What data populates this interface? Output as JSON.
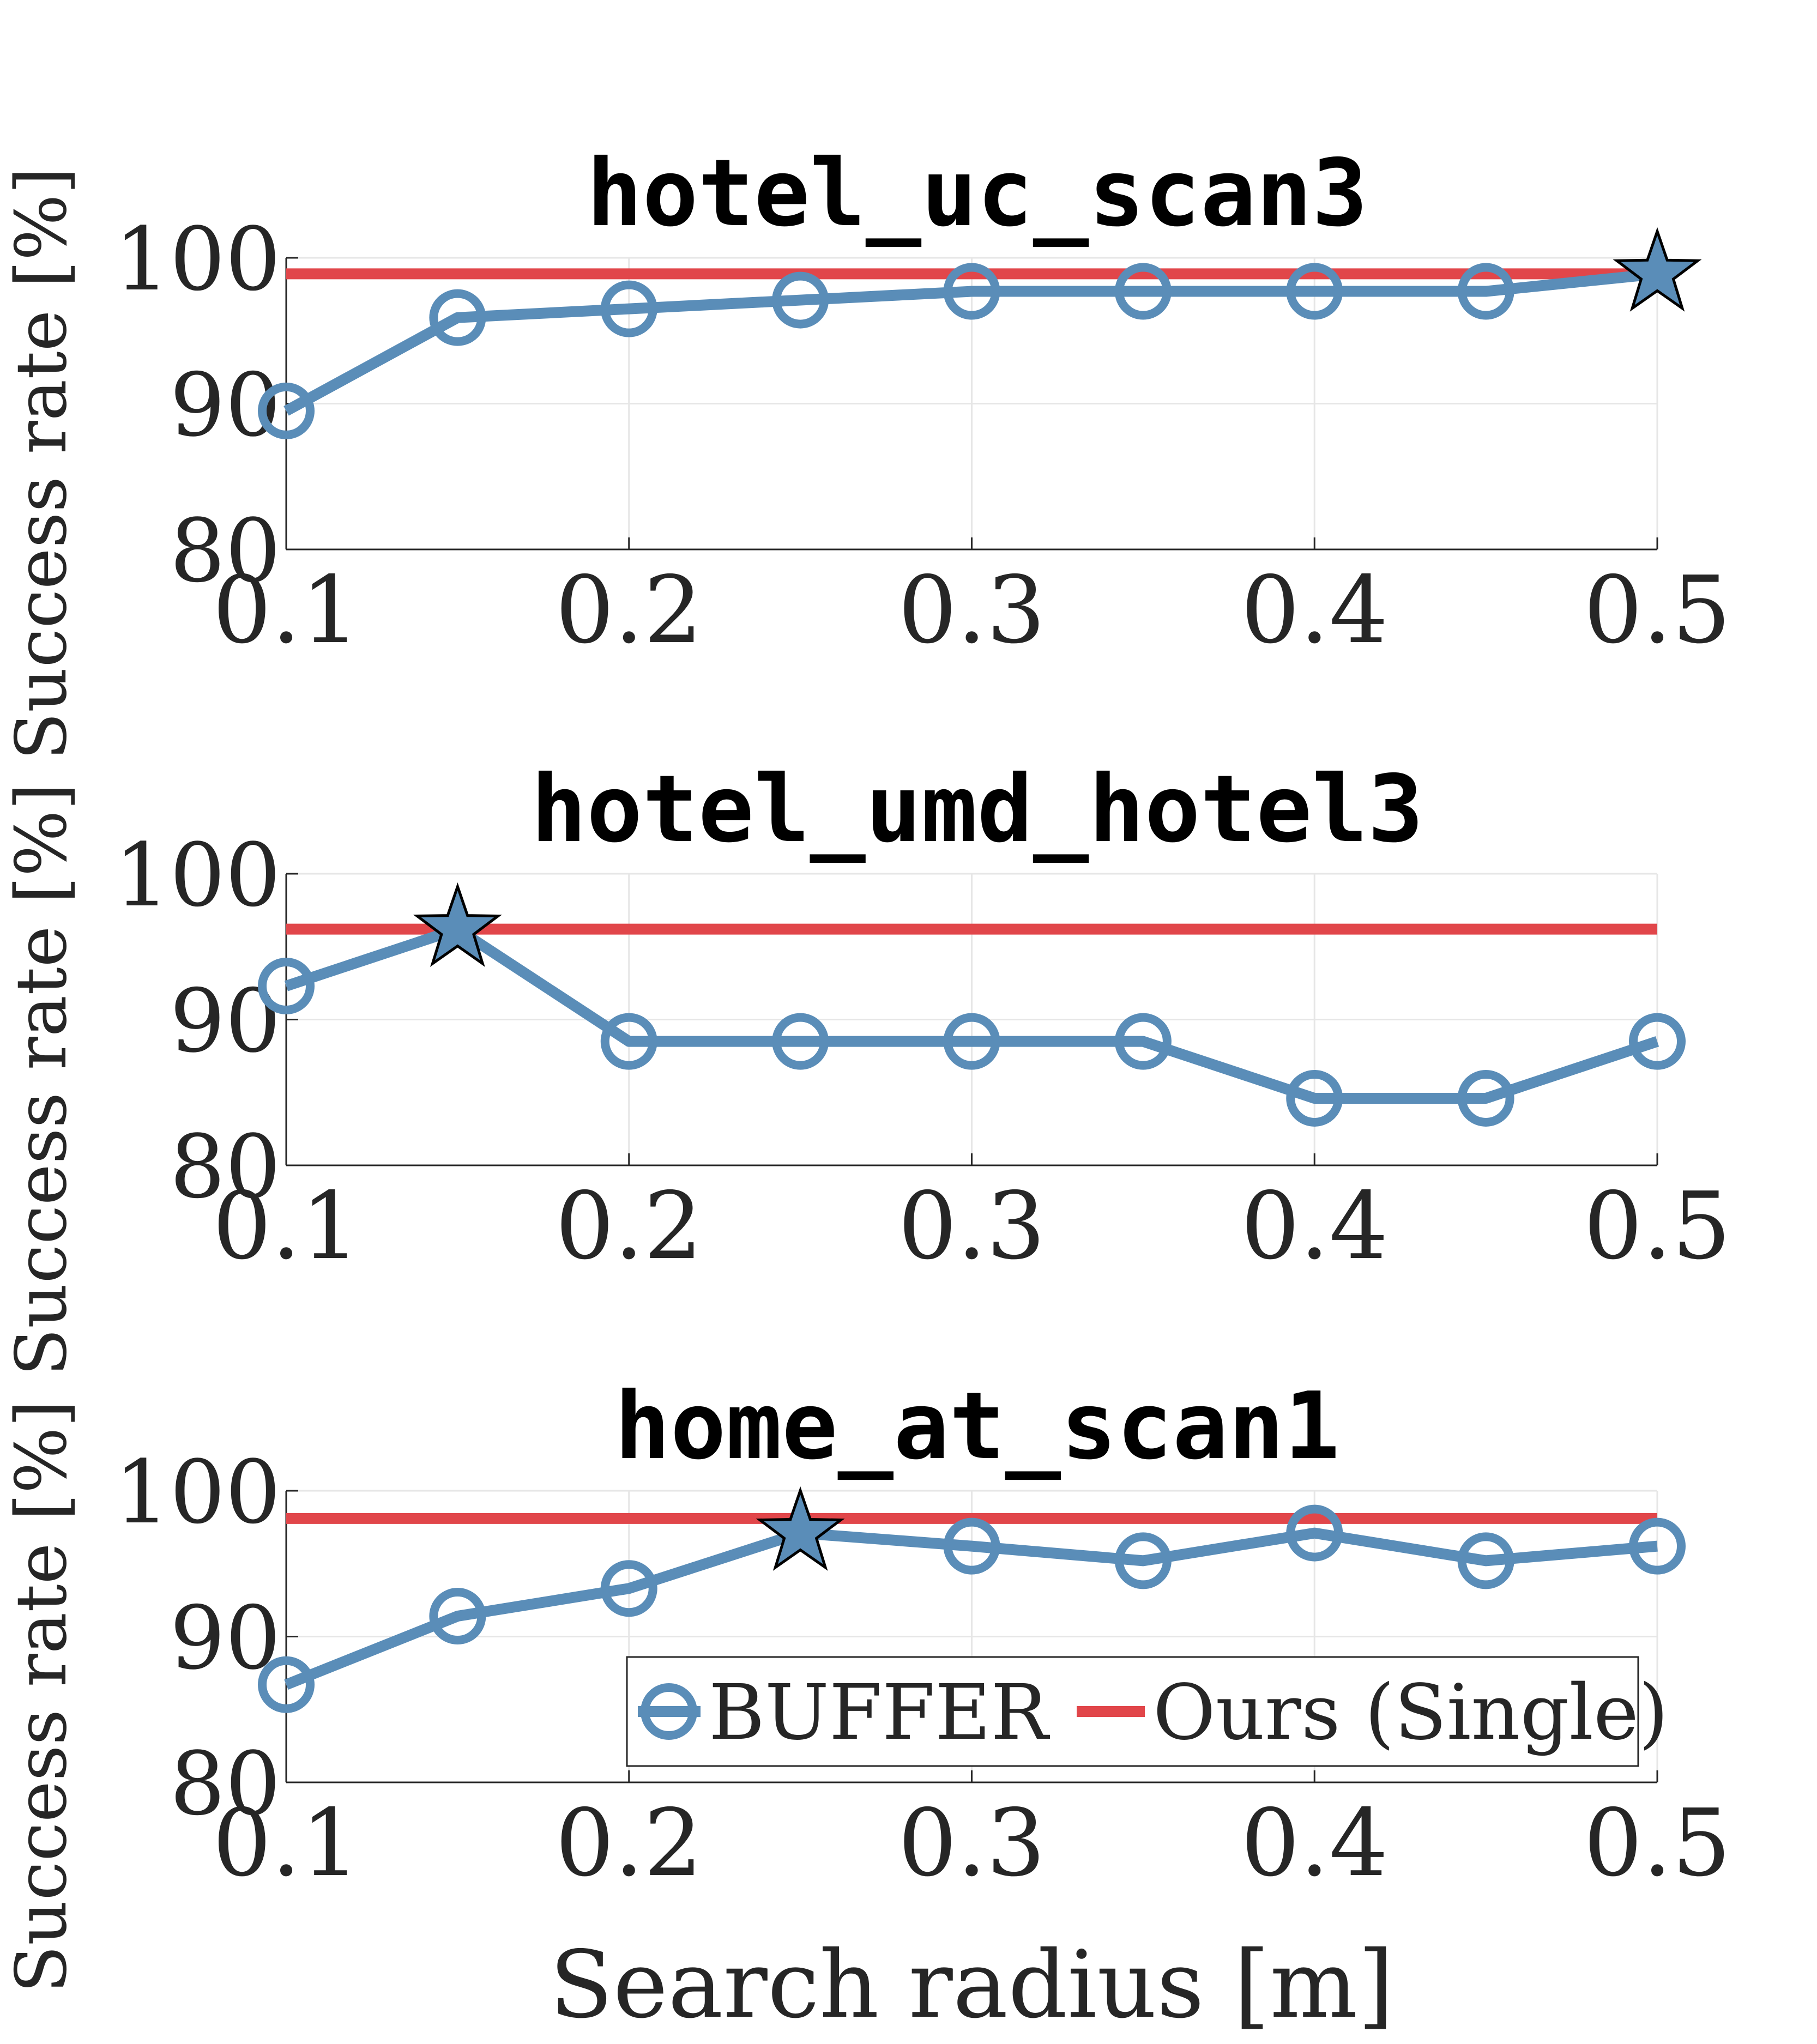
{
  "colors": {
    "buffer": "#5A8DB8",
    "ours": "#E1464A",
    "text": "#262626",
    "axis": "#262626",
    "grid": "#e6e6e6",
    "star_edge": "#000000"
  },
  "chart_data": [
    {
      "type": "line",
      "title": "hotel_uc_scan3",
      "ylabel": "Success rate [%]",
      "xlabel": "",
      "x": [
        0.1,
        0.15,
        0.2,
        0.25,
        0.3,
        0.35,
        0.4,
        0.45,
        0.5
      ],
      "xticks": [
        "0.1",
        "0.2",
        "0.3",
        "0.4",
        "0.5"
      ],
      "xtick_values": [
        0.1,
        0.2,
        0.3,
        0.4,
        0.5
      ],
      "yticks": [
        "80",
        "90",
        "100"
      ],
      "ytick_values": [
        80,
        90,
        100
      ],
      "xlim": [
        0.1,
        0.5
      ],
      "ylim": [
        80,
        100
      ],
      "grid": true,
      "series": [
        {
          "name": "BUFFER",
          "marker": "circle",
          "values": [
            89.5,
            95.9,
            96.5,
            97.1,
            97.7,
            97.7,
            97.7,
            97.7,
            98.9
          ]
        },
        {
          "name": "Ours (Single)",
          "marker": "none",
          "values": [
            98.9,
            98.9,
            98.9,
            98.9,
            98.9,
            98.9,
            98.9,
            98.9,
            98.9
          ]
        }
      ],
      "star": {
        "x": 0.5,
        "y": 98.9
      }
    },
    {
      "type": "line",
      "title": "hotel_umd_hotel3",
      "ylabel": "Success rate [%]",
      "xlabel": "",
      "x": [
        0.1,
        0.15,
        0.2,
        0.25,
        0.3,
        0.35,
        0.4,
        0.45,
        0.5
      ],
      "xticks": [
        "0.1",
        "0.2",
        "0.3",
        "0.4",
        "0.5"
      ],
      "xtick_values": [
        0.1,
        0.2,
        0.3,
        0.4,
        0.5
      ],
      "yticks": [
        "80",
        "90",
        "100"
      ],
      "ytick_values": [
        80,
        90,
        100
      ],
      "xlim": [
        0.1,
        0.5
      ],
      "ylim": [
        80,
        100
      ],
      "grid": true,
      "series": [
        {
          "name": "BUFFER",
          "marker": "circle",
          "values": [
            92.3,
            96.2,
            88.5,
            88.5,
            88.5,
            88.5,
            84.6,
            84.6,
            88.5
          ]
        },
        {
          "name": "Ours (Single)",
          "marker": "none",
          "values": [
            96.2,
            96.2,
            96.2,
            96.2,
            96.2,
            96.2,
            96.2,
            96.2,
            96.2
          ]
        }
      ],
      "star": {
        "x": 0.15,
        "y": 96.2
      }
    },
    {
      "type": "line",
      "title": "home_at_scan1",
      "ylabel": "Success rate [%]",
      "xlabel": "Search radius [m]",
      "x": [
        0.1,
        0.15,
        0.2,
        0.25,
        0.3,
        0.35,
        0.4,
        0.45,
        0.5
      ],
      "xticks": [
        "0.1",
        "0.2",
        "0.3",
        "0.4",
        "0.5"
      ],
      "xtick_values": [
        0.1,
        0.2,
        0.3,
        0.4,
        0.5
      ],
      "yticks": [
        "80",
        "90",
        "100"
      ],
      "ytick_values": [
        80,
        90,
        100
      ],
      "xlim": [
        0.1,
        0.5
      ],
      "ylim": [
        80,
        100
      ],
      "grid": true,
      "legend": {
        "placement": "bottom-right",
        "orientation": "horizontal",
        "entries": [
          "BUFFER",
          "Ours (Single)"
        ]
      },
      "series": [
        {
          "name": "BUFFER",
          "marker": "circle",
          "values": [
            86.7,
            91.4,
            93.3,
            97.1,
            96.2,
            95.2,
            97.1,
            95.2,
            96.2
          ]
        },
        {
          "name": "Ours (Single)",
          "marker": "none",
          "values": [
            98.1,
            98.1,
            98.1,
            98.1,
            98.1,
            98.1,
            98.1,
            98.1,
            98.1
          ]
        }
      ],
      "star": {
        "x": 0.25,
        "y": 97.1
      }
    }
  ]
}
